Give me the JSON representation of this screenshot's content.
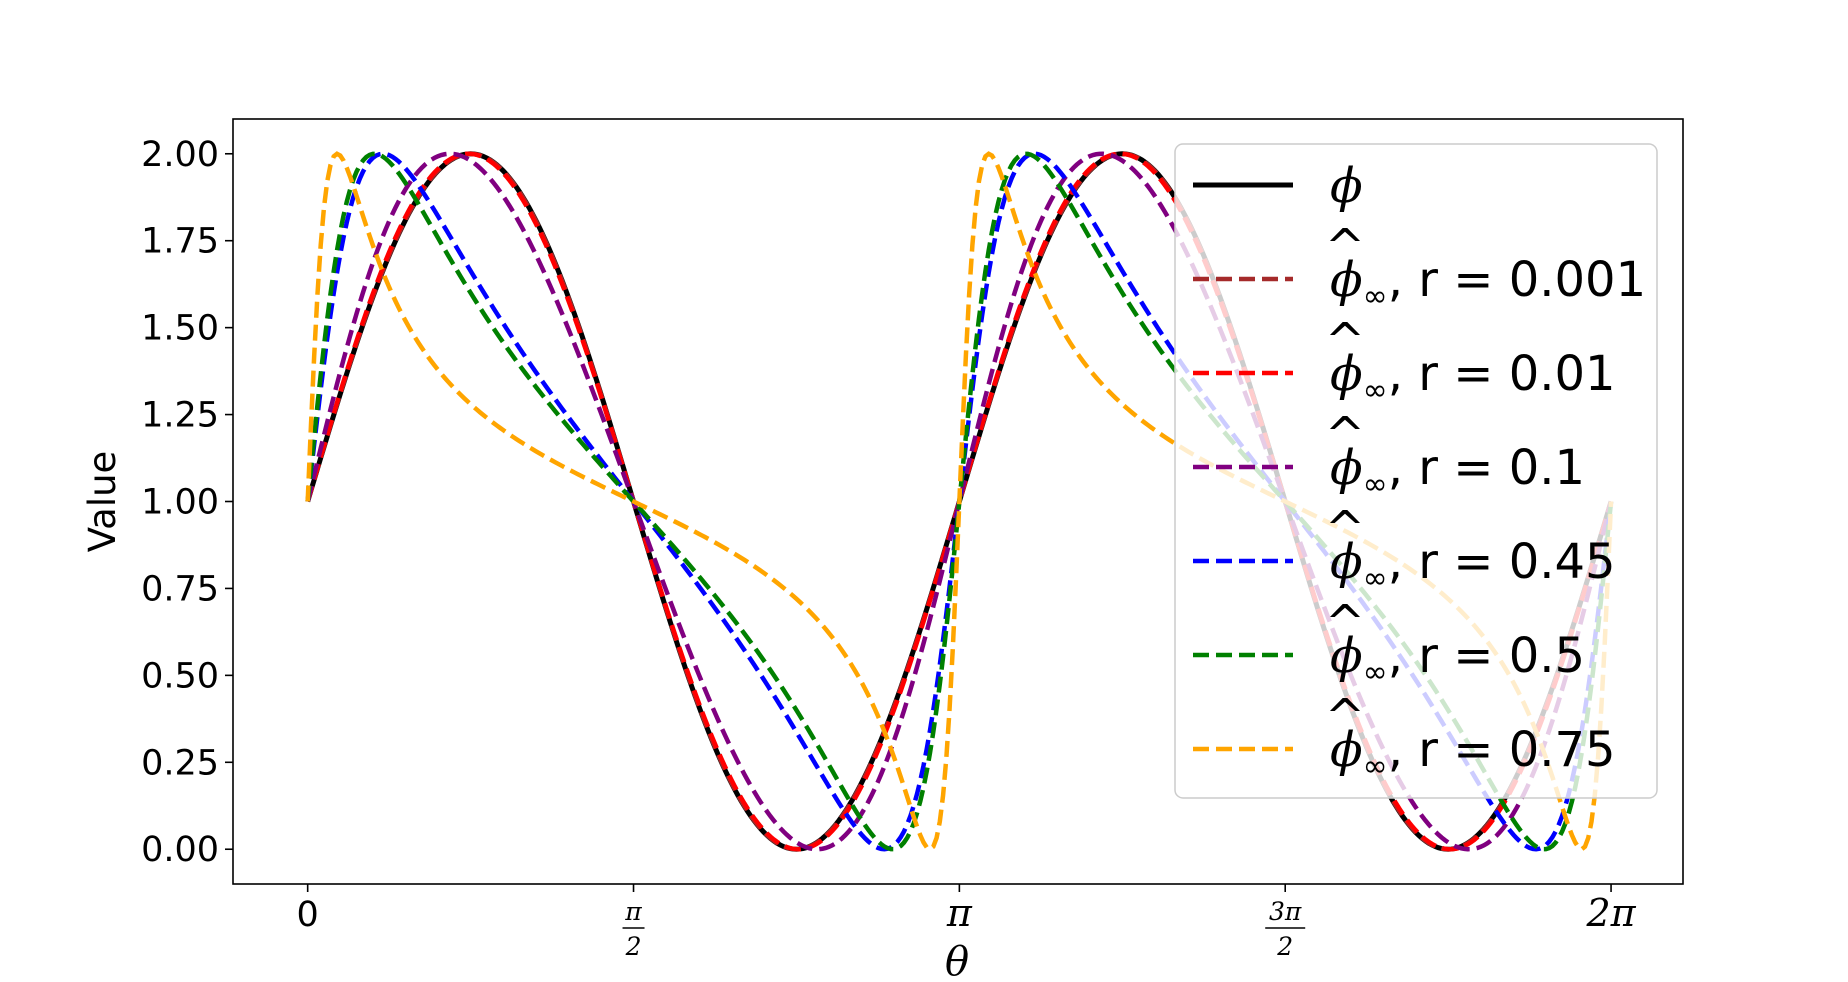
{
  "chart_data": {
    "type": "line",
    "title": "",
    "xlabel": "θ",
    "ylabel": "Value",
    "xlim": [
      -0.36,
      6.63
    ],
    "ylim": [
      -0.1,
      2.1
    ],
    "yticks": [
      0.0,
      0.25,
      0.5,
      0.75,
      1.0,
      1.25,
      1.5,
      1.75,
      2.0
    ],
    "ytick_labels": [
      "0.00",
      "0.25",
      "0.50",
      "0.75",
      "1.00",
      "1.25",
      "1.50",
      "1.75",
      "2.00"
    ],
    "xticks": [
      0,
      1.5708,
      3.1416,
      4.7124,
      6.2832
    ],
    "xtick_labels": [
      "0",
      "π/2",
      "π",
      "3π/2",
      "2π"
    ],
    "grid": false,
    "legend_position": "upper right",
    "series": [
      {
        "name": "ϕ",
        "style": "solid",
        "color": "#000000",
        "width": 5,
        "r": 0
      },
      {
        "name": "ϕ̂∞, r = 0.001",
        "style": "dashed",
        "color": "#a52a2a",
        "width": 4.5,
        "r": 0.001
      },
      {
        "name": "ϕ̂∞, r = 0.01",
        "style": "dashed",
        "color": "#ff0000",
        "width": 4.5,
        "r": 0.01
      },
      {
        "name": "ϕ̂∞, r = 0.1",
        "style": "dashed",
        "color": "#800080",
        "width": 4.5,
        "r": 0.1
      },
      {
        "name": "ϕ̂∞, r = 0.45",
        "style": "dashed",
        "color": "#0000ff",
        "width": 4.5,
        "r": 0.45
      },
      {
        "name": "ϕ̂∞, r = 0.5",
        "style": "dashed",
        "color": "#008000",
        "width": 4.5,
        "r": 0.5
      },
      {
        "name": "ϕ̂∞, r = 0.75",
        "style": "dashed",
        "color": "#ffa500",
        "width": 4.5,
        "r": 0.75
      }
    ],
    "legend_labels": [
      {
        "sym": "ϕ",
        "hat": false,
        "sub": "",
        "rest": ""
      },
      {
        "sym": "ϕ",
        "hat": true,
        "sub": "∞",
        "rest": ", r = 0.001"
      },
      {
        "sym": "ϕ",
        "hat": true,
        "sub": "∞",
        "rest": ", r = 0.01"
      },
      {
        "sym": "ϕ",
        "hat": true,
        "sub": "∞",
        "rest": ", r = 0.1"
      },
      {
        "sym": "ϕ",
        "hat": true,
        "sub": "∞",
        "rest": ", r = 0.45"
      },
      {
        "sym": "ϕ",
        "hat": true,
        "sub": "∞",
        "rest": ", r = 0.5"
      },
      {
        "sym": "ϕ",
        "hat": true,
        "sub": "∞",
        "rest": ", r = 0.75"
      }
    ]
  }
}
